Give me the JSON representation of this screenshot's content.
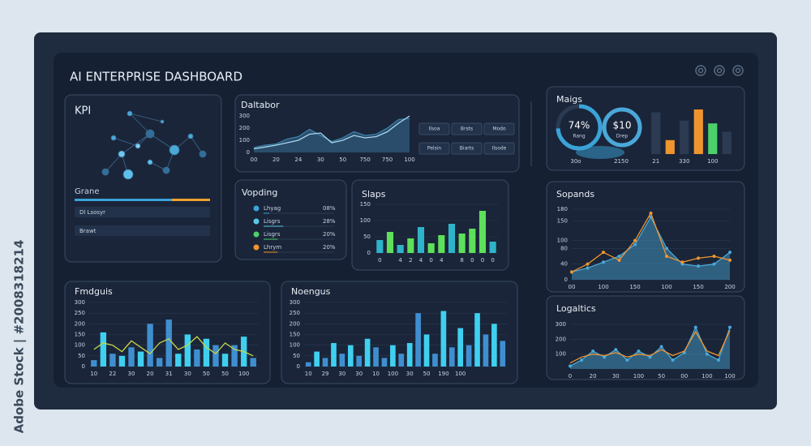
{
  "title": "AI ENTERPRISE DASHBOARD",
  "watermark": "Adobe Stock | #2008318214",
  "kpi": {
    "title": "KPI",
    "section": "Grane",
    "rows": [
      "Dl Lsosyr",
      "Brawt"
    ]
  },
  "vopding": {
    "title": "Vopding",
    "items": [
      {
        "name": "Lhyag",
        "value": 8,
        "value_label": "08%",
        "color": "#3aa3d8"
      },
      {
        "name": "Lisgrs",
        "value": 28,
        "value_label": "28%",
        "color": "#5cc8e8"
      },
      {
        "name": "Lisgrs",
        "value": 20,
        "value_label": "20%",
        "color": "#4cd06a"
      },
      {
        "name": "Lhrym",
        "value": 20,
        "value_label": "20%",
        "color": "#f0952e"
      }
    ]
  },
  "gauges": [
    {
      "value": 74,
      "label": "74%",
      "caption": "Rang",
      "footnote": "30o"
    },
    {
      "label": "$10",
      "caption": "Drep",
      "footnote": "2150"
    }
  ],
  "chart_data": [
    {
      "type": "area",
      "title": "Daltabor",
      "buttons": [
        "Ilsoa",
        "Brsts",
        "Modo",
        "Pelsin",
        "Biarts",
        "Ilsode"
      ],
      "categories": [
        "00",
        null,
        "20",
        null,
        "24",
        null,
        "30",
        null,
        "50",
        null,
        "750",
        null,
        "750",
        null,
        "100"
      ],
      "ylim": [
        0,
        300
      ],
      "yticks": [
        0,
        100,
        200,
        300
      ],
      "grid": false,
      "series": [
        {
          "color": "#3d7fa8",
          "style": "area",
          "values": [
            40,
            60,
            70,
            110,
            130,
            190,
            140,
            90,
            120,
            170,
            140,
            150,
            200,
            270,
            280
          ]
        },
        {
          "color": "#a9d6ee",
          "style": "line",
          "values": [
            30,
            45,
            60,
            80,
            100,
            150,
            160,
            80,
            100,
            140,
            120,
            130,
            170,
            240,
            300
          ]
        }
      ]
    },
    {
      "type": "bar",
      "title": "Slaps",
      "categories": [
        "0",
        null,
        "4",
        "2",
        "4",
        "0",
        "4",
        null,
        "8",
        "0",
        "0",
        "0"
      ],
      "ylim": [
        0,
        150
      ],
      "yticks": [
        0,
        50,
        100,
        150
      ],
      "grid": true,
      "series": [
        {
          "color": "#5ee05a",
          "colors": [
            "#2fb3c9",
            "#5ee05a",
            "#2fb3c9",
            "#5ee05a",
            "#2fb3c9",
            "#5ee05a",
            "#5ee05a",
            "#2fb3c9",
            "#5ee05a",
            "#5ee05a",
            "#5ee05a",
            "#2fb3c9"
          ],
          "values": [
            40,
            65,
            25,
            45,
            80,
            30,
            55,
            90,
            60,
            75,
            130,
            35
          ]
        }
      ]
    },
    {
      "type": "bar",
      "title": "Maigs",
      "categories": [
        "21",
        null,
        "330",
        null,
        "100",
        null
      ],
      "series": [
        {
          "color": "#2d3b52",
          "colors": [
            "#2d3b52",
            "#f0952e",
            "#2d3b52",
            "#f0952e",
            "#4cd06a",
            "#2d3b52"
          ],
          "values": [
            75,
            25,
            60,
            80,
            55,
            40
          ]
        }
      ]
    },
    {
      "type": "line",
      "title": "Sopands",
      "categories": [
        "00",
        null,
        "100",
        null,
        "150",
        null,
        "100",
        null,
        "150",
        null,
        "200"
      ],
      "ylim": [
        0,
        180
      ],
      "yticks": [
        0,
        40,
        80,
        100,
        150,
        180
      ],
      "grid": true,
      "series": [
        {
          "color": "#4aa8d8",
          "style": "area",
          "markers": true,
          "values": [
            20,
            30,
            45,
            60,
            90,
            160,
            80,
            40,
            35,
            40,
            70
          ]
        },
        {
          "color": "#f0952e",
          "style": "line",
          "markers": true,
          "values": [
            20,
            40,
            70,
            50,
            100,
            170,
            60,
            45,
            55,
            60,
            50
          ]
        }
      ]
    },
    {
      "type": "line",
      "title": "Logaltics",
      "categories": [
        "0",
        null,
        "20",
        null,
        "30",
        null,
        "100",
        null,
        "50",
        null,
        "00",
        null,
        "100",
        null,
        "100"
      ],
      "ylim": [
        0,
        300
      ],
      "yticks": [
        100,
        200,
        300
      ],
      "grid": true,
      "series": [
        {
          "color": "#4aa8d8",
          "style": "area",
          "markers": true,
          "values": [
            20,
            60,
            120,
            80,
            130,
            60,
            120,
            80,
            150,
            60,
            110,
            280,
            100,
            60,
            280
          ]
        },
        {
          "color": "#f0952e",
          "style": "line",
          "values": [
            40,
            80,
            100,
            90,
            110,
            80,
            100,
            90,
            130,
            90,
            120,
            250,
            120,
            90,
            260
          ]
        }
      ]
    },
    {
      "type": "bar",
      "title": "Fmdguis",
      "categories": [
        "10",
        null,
        "22",
        null,
        "30",
        null,
        "20",
        null,
        "31",
        null,
        "30",
        null,
        "50",
        null,
        "50",
        null,
        "100",
        null
      ],
      "ylim": [
        0,
        300
      ],
      "yticks": [
        0,
        50,
        100,
        150,
        200,
        250,
        300
      ],
      "grid": true,
      "series": [
        {
          "color": "#3fb7e0",
          "colors": [
            "#3f8fd0",
            "#3fd0f0",
            "#3f8fd0",
            "#3fd0f0",
            "#3f8fd0",
            "#3fd0f0",
            "#3f8fd0",
            "#3f8fd0",
            "#3f8fd0",
            "#3fd0f0",
            "#3fd0f0",
            "#3f8fd0",
            "#3fd0f0",
            "#3f8fd0",
            "#3fd0f0",
            "#3f8fd0",
            "#3fd0f0",
            "#3f8fd0"
          ],
          "values": [
            30,
            160,
            60,
            50,
            90,
            70,
            200,
            40,
            220,
            60,
            150,
            80,
            130,
            100,
            60,
            100,
            140,
            40
          ]
        },
        {
          "color": "#c5d64a",
          "style": "line",
          "values": [
            80,
            110,
            100,
            70,
            120,
            90,
            60,
            110,
            130,
            80,
            100,
            140,
            90,
            60,
            110,
            80,
            70,
            50
          ]
        }
      ]
    },
    {
      "type": "bar",
      "title": "Noengus",
      "categories": [
        "10",
        null,
        "29",
        null,
        "30",
        null,
        "30",
        null,
        "10",
        null,
        "100",
        null,
        "30",
        null,
        "50",
        null,
        "190",
        null,
        "100",
        null,
        null,
        null,
        null,
        null
      ],
      "ylim": [
        0,
        300
      ],
      "yticks": [
        0,
        50,
        100,
        150,
        200,
        250,
        300
      ],
      "grid": true,
      "series": [
        {
          "color": "#3fb7e0",
          "colors": [
            "#3f8fd0",
            "#3fd0f0",
            "#3f8fd0",
            "#3fd0f0",
            "#3f8fd0",
            "#3fd0f0",
            "#3f8fd0",
            "#3fd0f0",
            "#3f8fd0",
            "#3f8fd0",
            "#3fd0f0",
            "#3f8fd0",
            "#3fd0f0",
            "#3f8fd0",
            "#3fd0f0",
            "#3f8fd0",
            "#3fd0f0",
            "#3f8fd0",
            "#3fd0f0",
            "#3f8fd0",
            "#3fd0f0",
            "#3f8fd0",
            "#3fd0f0",
            "#3f8fd0"
          ],
          "values": [
            20,
            70,
            40,
            110,
            60,
            100,
            50,
            130,
            90,
            40,
            100,
            60,
            110,
            250,
            150,
            60,
            260,
            90,
            180,
            100,
            250,
            150,
            200,
            120
          ]
        }
      ]
    }
  ]
}
